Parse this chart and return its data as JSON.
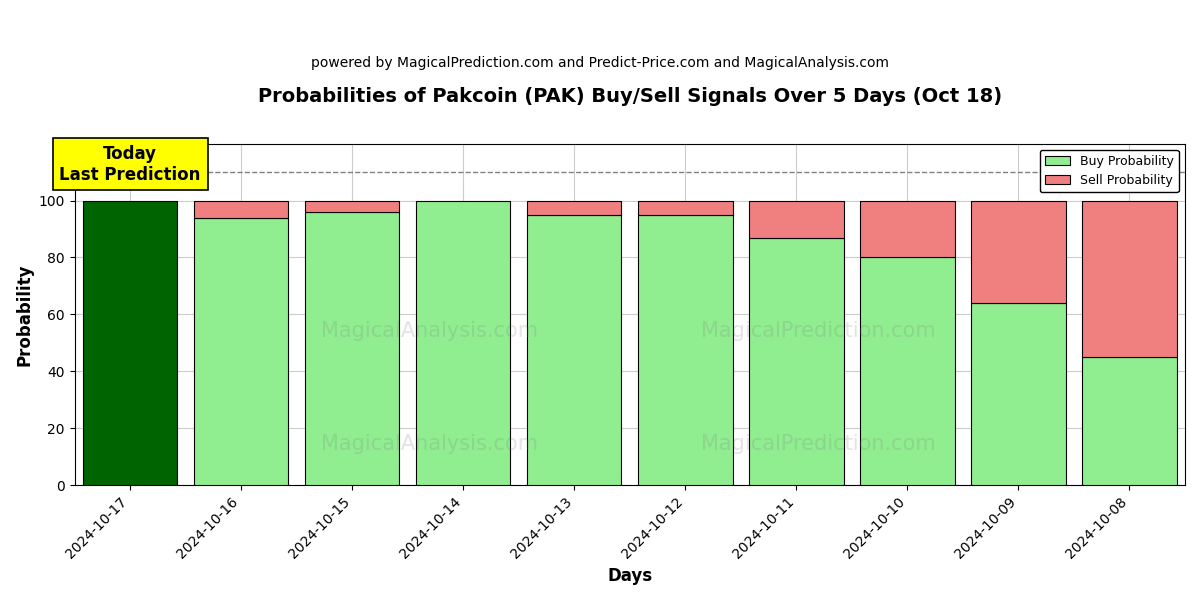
{
  "title": "Probabilities of Pakcoin (PAK) Buy/Sell Signals Over 5 Days (Oct 18)",
  "subtitle": "powered by MagicalPrediction.com and Predict-Price.com and MagicalAnalysis.com",
  "xlabel": "Days",
  "ylabel": "Probability",
  "dates": [
    "2024-10-17",
    "2024-10-16",
    "2024-10-15",
    "2024-10-14",
    "2024-10-13",
    "2024-10-12",
    "2024-10-11",
    "2024-10-10",
    "2024-10-09",
    "2024-10-08"
  ],
  "buy_values": [
    100,
    94,
    96,
    100,
    95,
    95,
    87,
    80,
    64,
    45
  ],
  "sell_values": [
    0,
    6,
    4,
    0,
    5,
    5,
    13,
    20,
    36,
    55
  ],
  "today_bar_color": "#006400",
  "buy_color": "#90EE90",
  "sell_color": "#F08080",
  "bar_edgecolor": "black",
  "bar_linewidth": 0.8,
  "today_label_bg": "#FFFF00",
  "today_label_text": "Today\nLast Prediction",
  "dashed_line_y": 110,
  "ylim": [
    0,
    120
  ],
  "yticks": [
    0,
    20,
    40,
    60,
    80,
    100
  ],
  "legend_buy": "Buy Probability",
  "legend_sell": "Sell Probability",
  "grid_color": "#cccccc",
  "background_color": "#ffffff",
  "title_fontsize": 14,
  "subtitle_fontsize": 10,
  "axis_label_fontsize": 12,
  "tick_fontsize": 10,
  "bar_width": 0.85
}
